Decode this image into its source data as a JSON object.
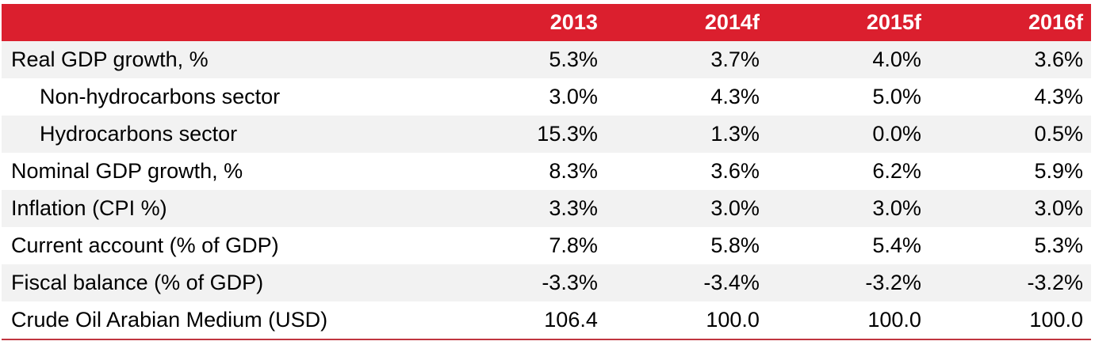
{
  "colors": {
    "header_bg": "#db1f2e",
    "stripe": "#f2f2f2",
    "bottom_rule": "#c0353f"
  },
  "table": {
    "headers": [
      "",
      "2013",
      "2014f",
      "2015f",
      "2016f"
    ],
    "rows": [
      {
        "label": "Real GDP growth, %",
        "indent": false,
        "values": [
          "5.3%",
          "3.7%",
          "4.0%",
          "3.6%"
        ]
      },
      {
        "label": "Non-hydrocarbons sector",
        "indent": true,
        "values": [
          "3.0%",
          "4.3%",
          "5.0%",
          "4.3%"
        ]
      },
      {
        "label": "Hydrocarbons sector",
        "indent": true,
        "values": [
          "15.3%",
          "1.3%",
          "0.0%",
          "0.5%"
        ]
      },
      {
        "label": "Nominal GDP growth, %",
        "indent": false,
        "values": [
          "8.3%",
          "3.6%",
          "6.2%",
          "5.9%"
        ]
      },
      {
        "label": "Inflation (CPI %)",
        "indent": false,
        "values": [
          "3.3%",
          "3.0%",
          "3.0%",
          "3.0%"
        ]
      },
      {
        "label": "Current account (% of GDP)",
        "indent": false,
        "values": [
          "7.8%",
          "5.8%",
          "5.4%",
          "5.3%"
        ]
      },
      {
        "label": "Fiscal balance (% of GDP)",
        "indent": false,
        "values": [
          "-3.3%",
          "-3.4%",
          "-3.2%",
          "-3.2%"
        ]
      },
      {
        "label": "Crude Oil Arabian Medium (USD)",
        "indent": false,
        "values": [
          "106.4",
          "100.0",
          "100.0",
          "100.0"
        ]
      }
    ]
  }
}
